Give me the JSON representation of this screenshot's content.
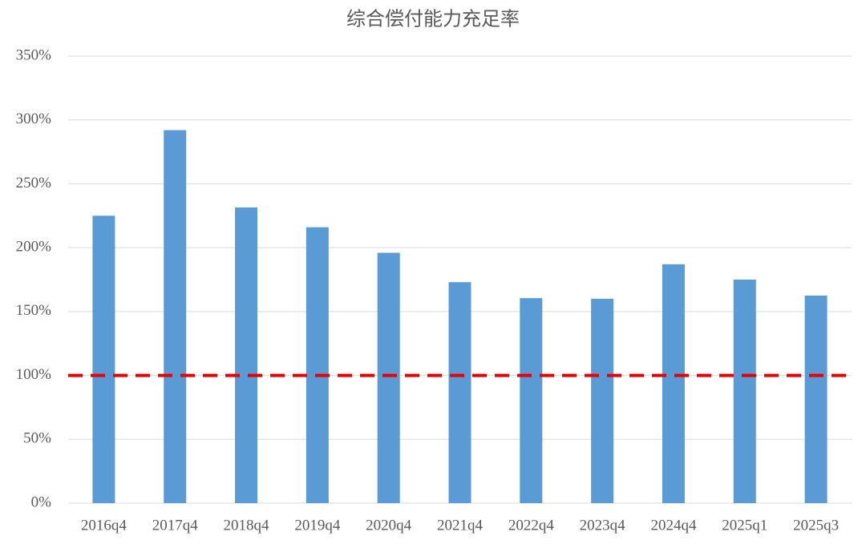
{
  "chart_data": {
    "type": "bar",
    "title": "综合偿付能力充足率",
    "categories": [
      "2016q4",
      "2017q4",
      "2018q4",
      "2019q4",
      "2020q4",
      "2021q4",
      "2022q4",
      "2023q4",
      "2024q4",
      "2025q1",
      "2025q3"
    ],
    "values": [
      225,
      292,
      231.5,
      216,
      196,
      173,
      160.5,
      160,
      187,
      175,
      162.5
    ],
    "color": "#5b9bd5",
    "ylim": [
      0,
      350
    ],
    "yticks": [
      {
        "value": 0,
        "label": "0%"
      },
      {
        "value": 50,
        "label": "50%"
      },
      {
        "value": 100,
        "label": "100%"
      },
      {
        "value": 150,
        "label": "150%"
      },
      {
        "value": 200,
        "label": "200%"
      },
      {
        "value": 250,
        "label": "250%"
      },
      {
        "value": 300,
        "label": "300%"
      },
      {
        "value": 350,
        "label": "350%"
      }
    ],
    "grid": true,
    "reference_line": {
      "value": 100,
      "color": "#e60000"
    }
  }
}
